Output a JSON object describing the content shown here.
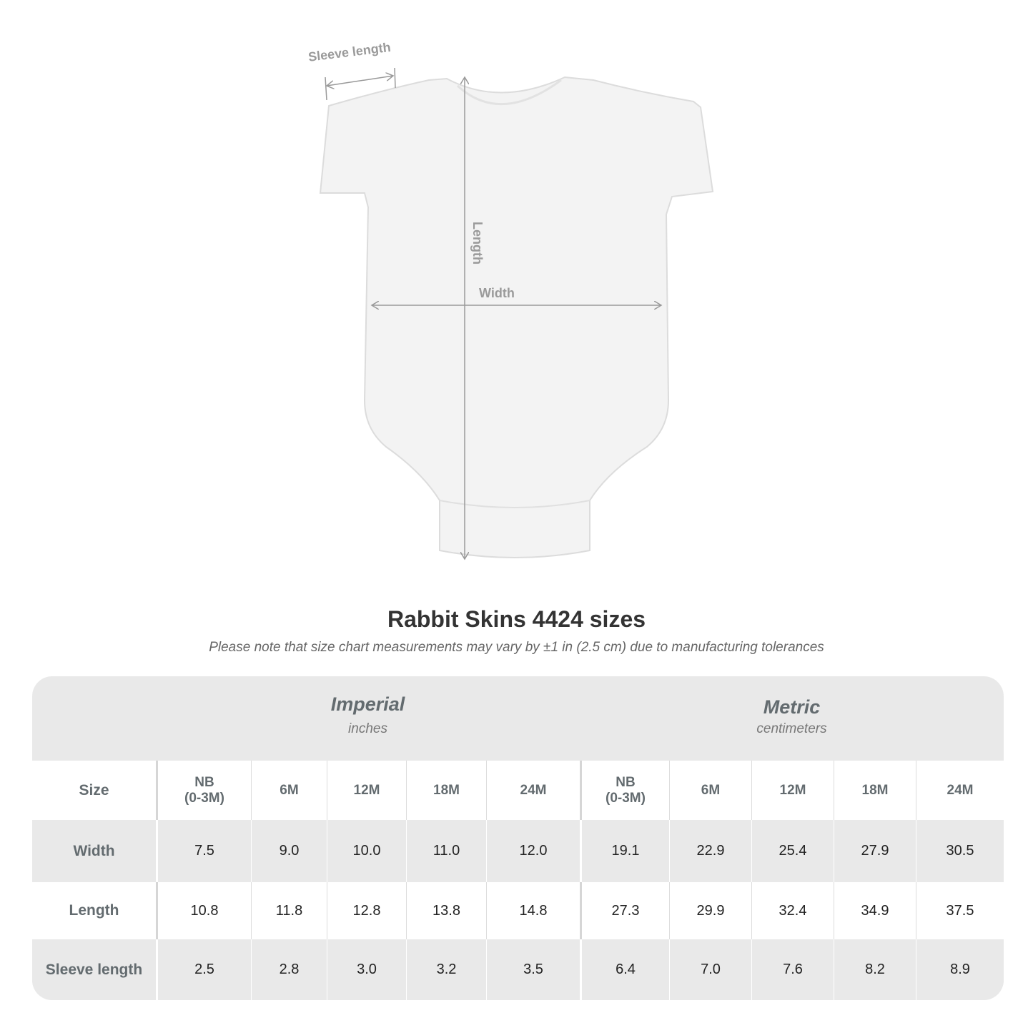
{
  "diagram": {
    "labels": {
      "sleeve": "Sleeve length",
      "length": "Length",
      "width": "Width"
    },
    "line_color": "#999999"
  },
  "title": "Rabbit Skins 4424 sizes",
  "note": "Please note that size chart measurements may vary by ±1 in (2.5 cm) due to manufacturing tolerances",
  "table": {
    "imperial": {
      "name": "Imperial",
      "unit": "inches"
    },
    "metric": {
      "name": "Metric",
      "unit": "centimeters"
    },
    "size_label": "Size",
    "sizes": [
      "NB\n(0-3M)",
      "6M",
      "12M",
      "18M",
      "24M",
      "NB\n(0-3M)",
      "6M",
      "12M",
      "18M",
      "24M"
    ],
    "rows": [
      {
        "label": "Width",
        "values": [
          "7.5",
          "9.0",
          "10.0",
          "11.0",
          "12.0",
          "19.1",
          "22.9",
          "25.4",
          "27.9",
          "30.5"
        ]
      },
      {
        "label": "Length",
        "values": [
          "10.8",
          "11.8",
          "12.8",
          "13.8",
          "14.8",
          "27.3",
          "29.9",
          "32.4",
          "34.9",
          "37.5"
        ]
      },
      {
        "label": "Sleeve length",
        "values": [
          "2.5",
          "2.8",
          "3.0",
          "3.2",
          "3.5",
          "6.4",
          "7.0",
          "7.6",
          "8.2",
          "8.9"
        ]
      }
    ]
  }
}
